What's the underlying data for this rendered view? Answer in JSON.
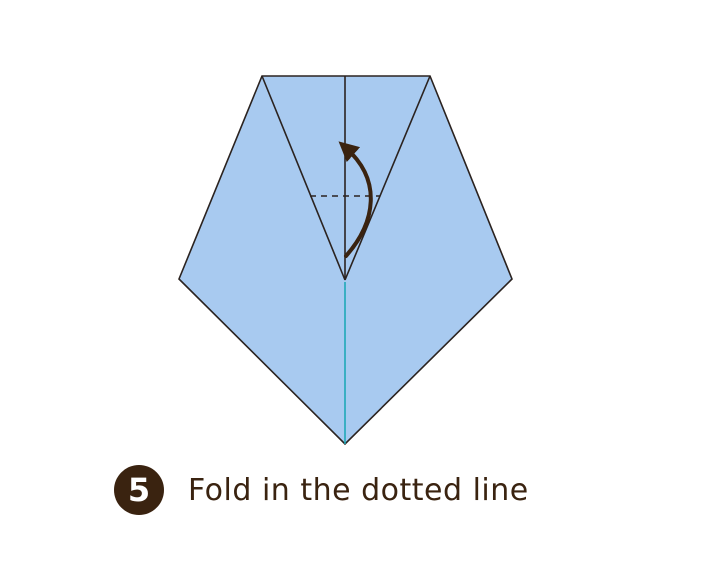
{
  "step": {
    "number": "5",
    "instruction": "Fold in the dotted line"
  },
  "colors": {
    "paper_fill": "#a8caf0",
    "outline": "#2b2320",
    "crease": "#1fa8b8",
    "arrow": "#3a2310",
    "badge_bg": "#3a2310",
    "badge_text": "#ffffff",
    "instruction_text": "#3a2310"
  },
  "icons": {
    "fold_arrow": "curved-fold-arrow-icon"
  }
}
